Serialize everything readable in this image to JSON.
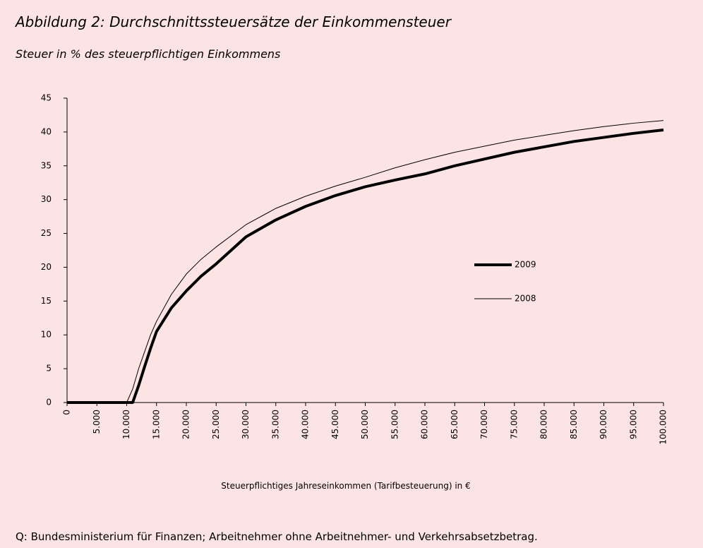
{
  "chart_data": {
    "type": "line",
    "title": "Abbildung 2: Durchschnittssteuersätze der Einkommensteuer",
    "subtitle": "Steuer in % des steuerpflichtigen Einkommens",
    "x_label": "Steuerpflichtiges Jahreseinkommen (Tarifbesteuerung) in €",
    "source": "Q: Bundesministerium für Finanzen; Arbeitnehmer ohne Arbeitnehmer- und Verkehrsabsetzbetrag.",
    "x": [
      0,
      5000,
      10000,
      11000,
      12000,
      13000,
      14000,
      15000,
      17500,
      20000,
      22500,
      25000,
      30000,
      35000,
      40000,
      45000,
      50000,
      55000,
      60000,
      65000,
      70000,
      75000,
      80000,
      85000,
      90000,
      95000,
      100000
    ],
    "series": [
      {
        "name": "2009",
        "color": "#000000",
        "width": 4,
        "values": [
          0,
          0,
          0,
          0,
          2.5,
          5.3,
          8,
          10.5,
          14,
          16.5,
          18.7,
          20.5,
          24.5,
          27,
          29,
          30.6,
          31.9,
          32.9,
          33.8,
          35,
          36,
          37,
          37.8,
          38.6,
          39.2,
          39.8,
          40.3
        ]
      },
      {
        "name": "2008",
        "color": "#000000",
        "width": 1,
        "values": [
          0,
          0,
          0,
          2,
          5,
          7.5,
          10,
          12,
          16,
          19,
          21.2,
          23,
          26.3,
          28.7,
          30.5,
          32,
          33.3,
          34.7,
          35.9,
          37,
          37.9,
          38.8,
          39.5,
          40.2,
          40.8,
          41.3,
          41.7
        ]
      }
    ],
    "xlim": [
      0,
      100000
    ],
    "xticks": [
      0,
      {
        "value": 5000,
        "label": "5.000"
      },
      {
        "value": 10000,
        "label": "10.000"
      },
      {
        "value": 15000,
        "label": "15.000"
      },
      {
        "value": 20000,
        "label": "20.000"
      },
      {
        "value": 25000,
        "label": "25.000"
      },
      {
        "value": 30000,
        "label": "30.000"
      },
      {
        "value": 35000,
        "label": "35.000"
      },
      {
        "value": 40000,
        "label": "40.000"
      },
      {
        "value": 45000,
        "label": "45.000"
      },
      {
        "value": 50000,
        "label": "50.000"
      },
      {
        "value": 55000,
        "label": "55.000"
      },
      {
        "value": 60000,
        "label": "60.000"
      },
      {
        "value": 65000,
        "label": "65.000"
      },
      {
        "value": 70000,
        "label": "70.000"
      },
      {
        "value": 75000,
        "label": "75.000"
      },
      {
        "value": 80000,
        "label": "80.000"
      },
      {
        "value": 85000,
        "label": "85.000"
      },
      {
        "value": 90000,
        "label": "90.000"
      },
      {
        "value": 95000,
        "label": "95.000"
      },
      {
        "value": 100000,
        "label": "100.000"
      }
    ],
    "ylim": [
      0,
      45
    ],
    "yticks": [
      0,
      5,
      10,
      15,
      20,
      25,
      30,
      35,
      40,
      45
    ],
    "grid": false
  }
}
